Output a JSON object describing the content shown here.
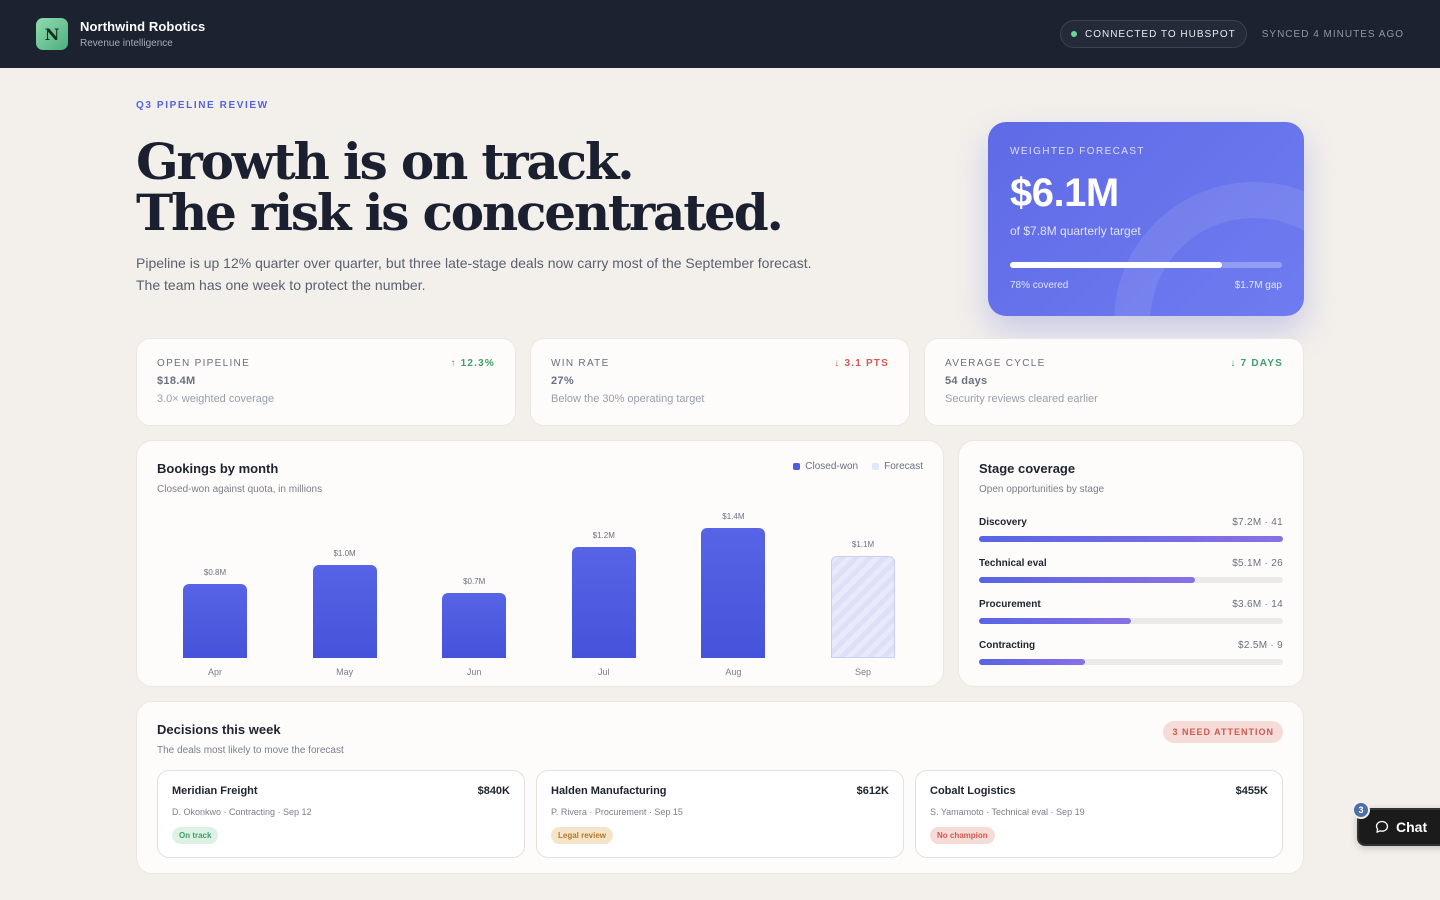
{
  "app": {
    "logo_letter": "N",
    "name": "Northwind Robotics",
    "subtitle": "Revenue intelligence",
    "connection": "CONNECTED TO HUBSPOT",
    "synced": "SYNCED 4 MINUTES AGO"
  },
  "hero": {
    "eyebrow": "Q3 PIPELINE REVIEW",
    "headline_line1": "Growth is on track.",
    "headline_line2": "The risk is concentrated.",
    "lede_line1": "Pipeline is up 12% quarter over quarter, but three late-stage deals now carry most of the September forecast.",
    "lede_line2": "The team has one week to protect the number."
  },
  "forecast": {
    "label": "WEIGHTED FORECAST",
    "value": "$6.1M",
    "target": "of $7.8M quarterly target",
    "coverage_fraction": 0.78,
    "covered_text": "78% covered",
    "gap_text": "$1.7M gap"
  },
  "kpis": [
    {
      "label": "OPEN PIPELINE",
      "delta": "↑ 12.3%",
      "value": "$18.4M",
      "note": "3.0× weighted coverage",
      "trend": "up"
    },
    {
      "label": "WIN RATE",
      "delta": "↓ 3.1 PTS",
      "value": "27%",
      "note": "Below the 30% operating target",
      "trend": "down"
    },
    {
      "label": "AVERAGE CYCLE",
      "delta": "↓ 7 DAYS",
      "value": "54 days",
      "note": "Security reviews cleared earlier",
      "trend": "up"
    }
  ],
  "bookings": {
    "title": "Bookings by month",
    "subtitle": "Closed-won against quota, in millions",
    "legend": {
      "closed": "Closed-won",
      "forecast": "Forecast"
    },
    "colors": {
      "closed": "#4f5ce0",
      "forecast": "#e3e6fa"
    }
  },
  "chart_data": {
    "type": "bar",
    "categories": [
      "Apr",
      "May",
      "Jun",
      "Jul",
      "Aug",
      "Sep"
    ],
    "values": [
      0.8,
      1.0,
      0.7,
      1.2,
      1.4,
      1.1
    ],
    "value_labels": [
      "$0.8M",
      "$1.0M",
      "$0.7M",
      "$1.2M",
      "$1.4M",
      "$1.1M"
    ],
    "kinds": [
      "closed",
      "closed",
      "closed",
      "closed",
      "closed",
      "forecast"
    ],
    "title": "Bookings by month",
    "subtitle": "Closed-won against quota, in millions",
    "legend": [
      "Closed-won",
      "Forecast"
    ],
    "legend_position": "top-right",
    "ylim": [
      0,
      1.4
    ],
    "grid": false
  },
  "stages": {
    "title": "Stage coverage",
    "subtitle": "Open opportunities by stage",
    "items": [
      {
        "name": "Discovery",
        "value": "$7.2M · 41",
        "fraction": 1.0
      },
      {
        "name": "Technical eval",
        "value": "$5.1M · 26",
        "fraction": 0.71
      },
      {
        "name": "Procurement",
        "value": "$3.6M · 14",
        "fraction": 0.5
      },
      {
        "name": "Contracting",
        "value": "$2.5M · 9",
        "fraction": 0.35
      }
    ]
  },
  "decisions": {
    "title": "Decisions this week",
    "subtitle": "The deals most likely to move the forecast",
    "badge": "3 NEED ATTENTION",
    "deals": [
      {
        "name": "Meridian Freight",
        "amount": "$840K",
        "meta": "D. Okonkwo · Contracting · Sep 12",
        "tag": "On track",
        "tone": "green"
      },
      {
        "name": "Halden Manufacturing",
        "amount": "$612K",
        "meta": "P. Rivera · Procurement · Sep 15",
        "tag": "Legal review",
        "tone": "amber"
      },
      {
        "name": "Cobalt Logistics",
        "amount": "$455K",
        "meta": "S. Yamamoto · Technical eval · Sep 19",
        "tag": "No champion",
        "tone": "red"
      }
    ]
  },
  "chat": {
    "label": "Chat",
    "count": "3",
    "icon": "chat-bubble-icon"
  }
}
